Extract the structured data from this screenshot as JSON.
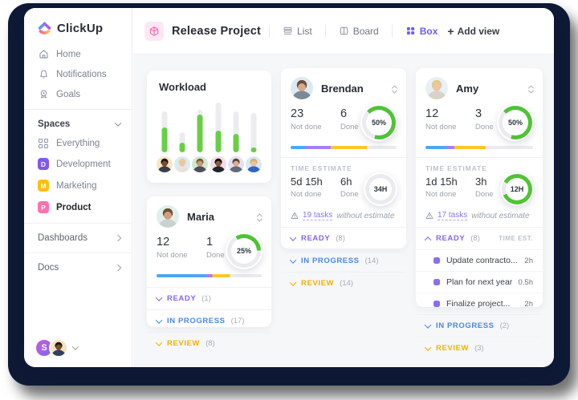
{
  "app": {
    "logo_text": "ClickUp"
  },
  "colors": {
    "clickup_purple": "#7b68ee",
    "status_ready": "#8664ee",
    "status_in_progress": "#4a86e8",
    "status_review": "#f2b200",
    "segment_blue": "#49a8f5",
    "segment_purple": "#a77ef2",
    "segment_yellow": "#fdc62b",
    "segment_gray": "#e9ebef",
    "workload_green": "#68cf44",
    "ring_green": "#4ec433",
    "ring_gray": "#e9ebef",
    "product_pink": "#fd71af"
  },
  "sidebar": {
    "items": [
      {
        "label": "Home",
        "icon": "home-icon"
      },
      {
        "label": "Notifications",
        "icon": "bell-icon"
      },
      {
        "label": "Goals",
        "icon": "goal-icon"
      }
    ],
    "spaces_header": {
      "label": "Spaces"
    },
    "spaces": [
      {
        "label": "Everything",
        "icon": "grid-icon"
      },
      {
        "label": "Development",
        "badge": "D",
        "badge_color": "#8057f0"
      },
      {
        "label": "Marketing",
        "badge": "M",
        "badge_color": "#fdc00f"
      },
      {
        "label": "Product",
        "badge": "P",
        "badge_color": "#fd71af",
        "selected": true
      }
    ],
    "links": [
      {
        "label": "Dashboards"
      },
      {
        "label": "Docs"
      }
    ],
    "workspace_badge": "S",
    "user_avatar": {
      "bg": "#f3e3c2",
      "skin": "#7a4b2e",
      "hair": "#1d1612",
      "shirt": "#31405a"
    }
  },
  "header": {
    "project_title": "Release Project",
    "tabs": [
      {
        "label": "List",
        "active": false
      },
      {
        "label": "Board",
        "active": false
      },
      {
        "label": "Box",
        "active": true
      }
    ],
    "add_view_label": "Add view"
  },
  "workload": {
    "title": "Workload",
    "avatars": [
      {
        "bg": "#f6e7c3",
        "skin": "#7a4b2e",
        "hair": "#201713",
        "shirt": "#3a3f47"
      },
      {
        "bg": "#d9ebf6",
        "skin": "#eec3a3",
        "hair": "#e9d08e",
        "shirt": "#e8e3da"
      },
      {
        "bg": "#cfe9cf",
        "skin": "#c99b72",
        "hair": "#7a5c3e",
        "shirt": "#49505a"
      },
      {
        "bg": "#f1dce7",
        "skin": "#8a5a3d",
        "hair": "#17110f",
        "shirt": "#20242b"
      },
      {
        "bg": "#e4e1f6",
        "skin": "#dcae8d",
        "hair": "#584636",
        "shirt": "#636a75"
      },
      {
        "bg": "#d7e8f8",
        "skin": "#ecc19c",
        "hair": "#d9b068",
        "shirt": "#2b66c4"
      }
    ]
  },
  "chart_data": {
    "type": "bar",
    "title": "Workload",
    "categories": [
      "member-1",
      "member-2",
      "member-3",
      "member-4",
      "member-5",
      "member-6"
    ],
    "series": [
      {
        "name": "capacity",
        "values": [
          83,
          40,
          86,
          100,
          83,
          79
        ]
      },
      {
        "name": "assigned",
        "values": [
          50,
          19,
          76,
          44,
          37,
          10
        ]
      }
    ],
    "ylim": [
      0,
      100
    ],
    "grid": false,
    "legend": "none"
  },
  "cards": {
    "brendan": {
      "name": "Brendan",
      "avatar": {
        "bg": "#dce9f2",
        "skin": "#d9a887",
        "hair": "#6b4f3a",
        "shirt": "#7c8a94"
      },
      "not_done": "23",
      "not_done_label": "Not done",
      "done": "6",
      "done_label": "Done",
      "ring": {
        "label": "50%",
        "pct": 67,
        "from": 315
      },
      "progress": [
        [
          "#49a8f5",
          14
        ],
        [
          "#a77ef2",
          24
        ],
        [
          "#fdc62b",
          34
        ],
        [
          "#e9ebef",
          28
        ]
      ],
      "time_estimate_label": "TIME ESTIMATE",
      "te_not_done": "5d 15h",
      "te_not_done_label": "Not done",
      "te_done": "6h",
      "te_done_label": "Done",
      "te_ring": {
        "label": "34H",
        "pct": 0,
        "from": 0
      },
      "warning_link": "19 tasks",
      "warning_rest": "without estimate",
      "sections": [
        {
          "label": "READY",
          "count": "(8)",
          "color": "#8664ee",
          "expanded": false
        },
        {
          "label": "IN PROGRESS",
          "count": "(14)",
          "color": "#4a86e8",
          "expanded": false
        },
        {
          "label": "REVIEW",
          "count": "(14)",
          "color": "#f2b200",
          "expanded": false
        }
      ]
    },
    "amy": {
      "name": "Amy",
      "avatar": {
        "bg": "#e8f0f6",
        "skin": "#edc6a6",
        "hair": "#e3c98f",
        "shirt": "#d9d2c6"
      },
      "not_done": "12",
      "not_done_label": "Not done",
      "done": "3",
      "done_label": "Done",
      "ring": {
        "label": "50%",
        "pct": 67,
        "from": 315
      },
      "progress": [
        [
          "#49a8f5",
          19
        ],
        [
          "#a77ef2",
          8
        ],
        [
          "#fdc62b",
          29
        ],
        [
          "#e9ebef",
          44
        ]
      ],
      "time_estimate_label": "TIME ESTIMATE",
      "te_not_done": "1d 15h",
      "te_not_done_label": "Not done",
      "te_done": "3h",
      "te_done_label": "Done",
      "te_ring": {
        "label": "12H",
        "pct": 85,
        "from": 300
      },
      "warning_link": "17 tasks",
      "warning_rest": "without estimate",
      "ready_section": {
        "label": "READY",
        "count": "(8)",
        "color": "#8664ee",
        "time_est_header": "TIME EST."
      },
      "tasks": [
        {
          "name": "Update contracto...",
          "time": "2h"
        },
        {
          "name": "Plan for next year",
          "time": "0.5h"
        },
        {
          "name": "Finalize project...",
          "time": "2h"
        }
      ],
      "sections": [
        {
          "label": "IN PROGRESS",
          "count": "(2)",
          "color": "#4a86e8",
          "expanded": false
        },
        {
          "label": "REVIEW",
          "count": "(3)",
          "color": "#f2b200",
          "expanded": false
        }
      ]
    },
    "maria": {
      "name": "Maria",
      "avatar": {
        "bg": "#dff0ea",
        "skin": "#cfa07b",
        "hair": "#6e4f35",
        "shirt": "#c9d2cf"
      },
      "not_done": "12",
      "not_done_label": "Not done",
      "done": "1",
      "done_label": "Done",
      "ring": {
        "label": "25%",
        "pct": 33,
        "from": 330
      },
      "progress": [
        [
          "#49a8f5",
          47
        ],
        [
          "#a77ef2",
          6
        ],
        [
          "#fdc62b",
          17
        ],
        [
          "#e9ebef",
          30
        ]
      ],
      "sections": [
        {
          "label": "READY",
          "count": "(1)",
          "color": "#8664ee",
          "expanded": false
        },
        {
          "label": "IN PROGRESS",
          "count": "(17)",
          "color": "#4a86e8",
          "expanded": false
        },
        {
          "label": "REVIEW",
          "count": "(8)",
          "color": "#f2b200",
          "expanded": false
        }
      ]
    }
  }
}
